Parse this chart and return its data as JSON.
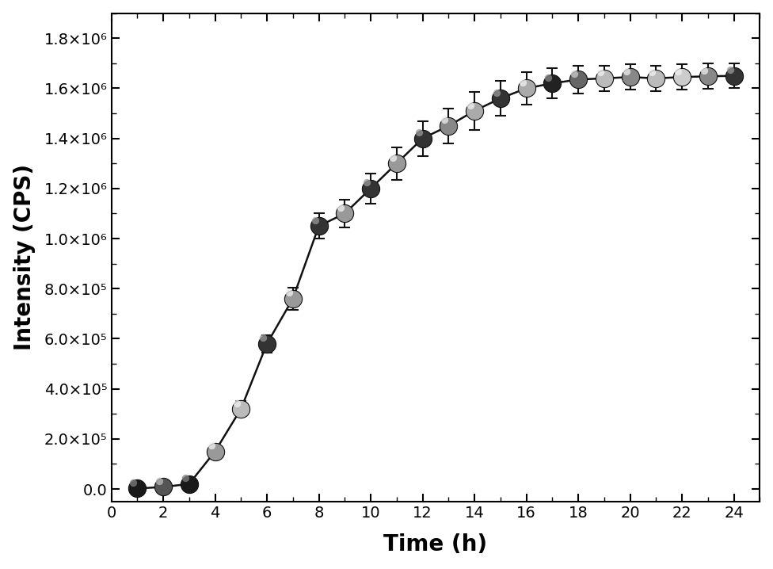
{
  "x": [
    1,
    2,
    3,
    4,
    5,
    6,
    7,
    8,
    9,
    10,
    11,
    12,
    13,
    14,
    15,
    16,
    17,
    18,
    19,
    20,
    21,
    22,
    23,
    24
  ],
  "y": [
    2000,
    8000,
    20000,
    150000,
    320000,
    580000,
    760000,
    1050000,
    1100000,
    1200000,
    1300000,
    1400000,
    1450000,
    1510000,
    1560000,
    1600000,
    1620000,
    1635000,
    1640000,
    1645000,
    1640000,
    1645000,
    1648000,
    1650000
  ],
  "yerr": [
    8000,
    8000,
    15000,
    20000,
    30000,
    35000,
    45000,
    50000,
    55000,
    60000,
    65000,
    70000,
    70000,
    75000,
    70000,
    65000,
    60000,
    55000,
    50000,
    50000,
    50000,
    50000,
    50000,
    50000
  ],
  "xlim": [
    0,
    25
  ],
  "ylim": [
    -50000,
    1900000
  ],
  "xticks": [
    0,
    2,
    4,
    6,
    8,
    10,
    12,
    14,
    16,
    18,
    20,
    22,
    24
  ],
  "ytick_values": [
    0.0,
    200000,
    400000,
    600000,
    800000,
    1000000,
    1200000,
    1400000,
    1600000,
    1800000
  ],
  "xlabel": "Time (h)",
  "ylabel": "Intensity (CPS)",
  "line_color": "#111111",
  "background_color": "#ffffff",
  "figsize": [
    9.76,
    7.18
  ],
  "dpi": 100,
  "marker_size": 16,
  "marker_colors": [
    "#2a2a2a",
    "#888888",
    "#2a2a2a",
    "#aaaaaa",
    "#b0b0b0",
    "#444444",
    "#aaaaaa",
    "#444444",
    "#aaaaaa",
    "#444444",
    "#888888",
    "#444444",
    "#888888",
    "#aaaaaa",
    "#444444",
    "#aaaaaa",
    "#444444",
    "#888888",
    "#222222",
    "#888888",
    "#222222",
    "#888888",
    "#222222",
    "#888888"
  ]
}
